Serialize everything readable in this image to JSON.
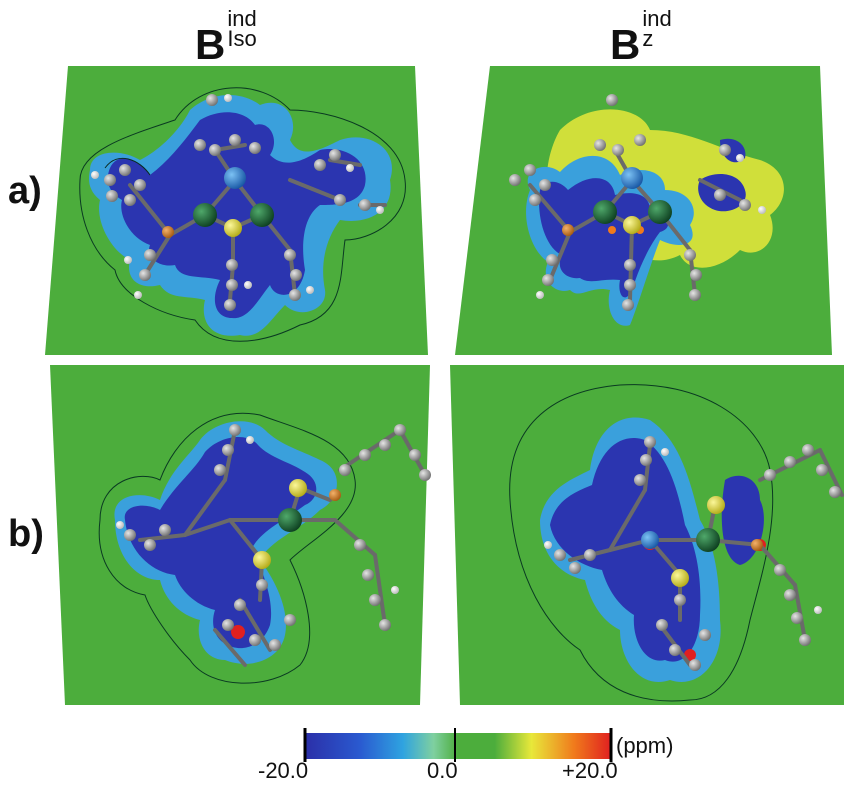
{
  "columns": [
    {
      "symbol": "B",
      "sup": "ind",
      "sub": "Iso"
    },
    {
      "symbol": "B",
      "sup": "ind",
      "sub": "z"
    }
  ],
  "rows": [
    "a)",
    "b)"
  ],
  "colorbar": {
    "ticks": [
      "-20.0",
      "0.0",
      "+20.0"
    ],
    "unit": "(ppm)",
    "stops": [
      "#2b2fa8",
      "#2fa3e0",
      "#7fd0a0",
      "#4cad3c",
      "#4cad3c",
      "#e8e83a",
      "#f07a1c",
      "#e02020"
    ]
  },
  "colors": {
    "field": "#4cad3c",
    "shield_deep": "#2b35b0",
    "shield_mid": "#3aa0dc",
    "shield_light": "#8fd8e0",
    "deshield": "#e8e83a",
    "atom_c": "#9a9a9a",
    "atom_h": "#f2f2f2",
    "atom_s": "#e2dd3a",
    "atom_metal": "#1e6b3a",
    "atom_center": "#2a8ad8"
  }
}
